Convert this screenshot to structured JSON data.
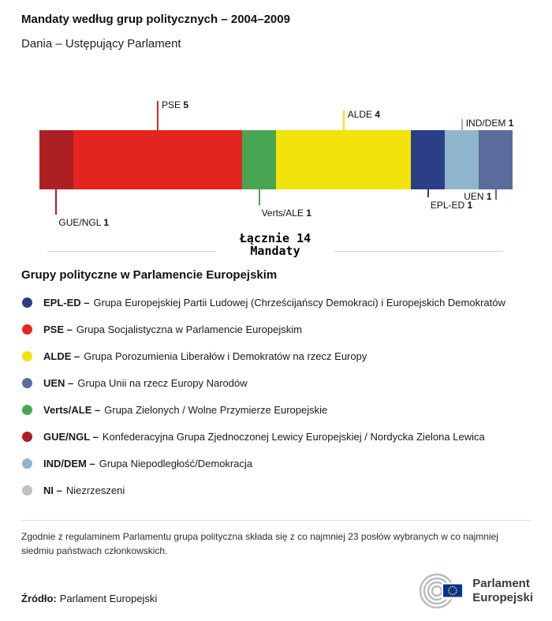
{
  "header": {
    "title": "Mandaty według grup politycznych – 2004–2009",
    "subtitle": "Dania – Ustępujący Parlament"
  },
  "chart_data": {
    "type": "bar",
    "variant": "horizontal-stacked-seats",
    "title": "Mandaty według grup politycznych – 2004–2009",
    "subtitle": "Dania – Ustępujący Parlament",
    "total": 14,
    "total_label": "Łącznie 14",
    "total_sublabel": "Mandaty",
    "segments": [
      {
        "group": "GUE/NGL",
        "seats": 1,
        "color": "#ac1f23"
      },
      {
        "group": "PSE",
        "seats": 5,
        "color": "#e4251f"
      },
      {
        "group": "Verts/ALE",
        "seats": 1,
        "color": "#4aa552"
      },
      {
        "group": "ALDE",
        "seats": 4,
        "color": "#f2e30b"
      },
      {
        "group": "EPL-ED",
        "seats": 1,
        "color": "#2b3f87"
      },
      {
        "group": "IND/DEM",
        "seats": 1,
        "color": "#8fb6cc"
      },
      {
        "group": "UEN",
        "seats": 1,
        "color": "#5a6c9b"
      }
    ]
  },
  "legend": {
    "heading": "Grupy polityczne w Parlamencie Europejskim",
    "items": [
      {
        "group": "EPL-ED",
        "label": "EPL-ED –",
        "name": "Grupa Europejskiej Partii Ludowej (Chrześcijańscy Demokraci) i Europejskich Demokratów",
        "color": "#2b3f87"
      },
      {
        "group": "PSE",
        "label": "PSE –",
        "name": "Grupa Socjalistyczna w Parlamencie Europejskim",
        "color": "#e4251f"
      },
      {
        "group": "ALDE",
        "label": "ALDE –",
        "name": "Grupa Porozumienia Liberałów i Demokratów na rzecz Europy",
        "color": "#f2e30b"
      },
      {
        "group": "UEN",
        "label": "UEN –",
        "name": "Grupa Unii na rzecz Europy Narodów",
        "color": "#5a6c9b"
      },
      {
        "group": "Verts/ALE",
        "label": "Verts/ALE –",
        "name": "Grupa Zielonych / Wolne Przymierze Europejskie",
        "color": "#4aa552"
      },
      {
        "group": "GUE/NGL",
        "label": "GUE/NGL –",
        "name": "Konfederacyjna Grupa Zjednoczonej Lewicy Europejskiej / Nordycka Zielona Lewica",
        "color": "#ac1f23"
      },
      {
        "group": "IND/DEM",
        "label": "IND/DEM –",
        "name": "Grupa Niepodległość/Demokracja",
        "color": "#8fb6cc"
      },
      {
        "group": "NI",
        "label": "NI –",
        "name": "Niezrzeszeni",
        "color": "#c0c0c0"
      }
    ]
  },
  "footnote": "Zgodnie z regulaminem Parlamentu grupa polityczna składa się z co najmniej 23 posłów wybranych w co najmniej siedmiu państwach członkowskich.",
  "source": {
    "label": "Źródło:",
    "value": "Parlament Europejski"
  },
  "logo": {
    "line1": "Parlament",
    "line2": "Europejski"
  }
}
